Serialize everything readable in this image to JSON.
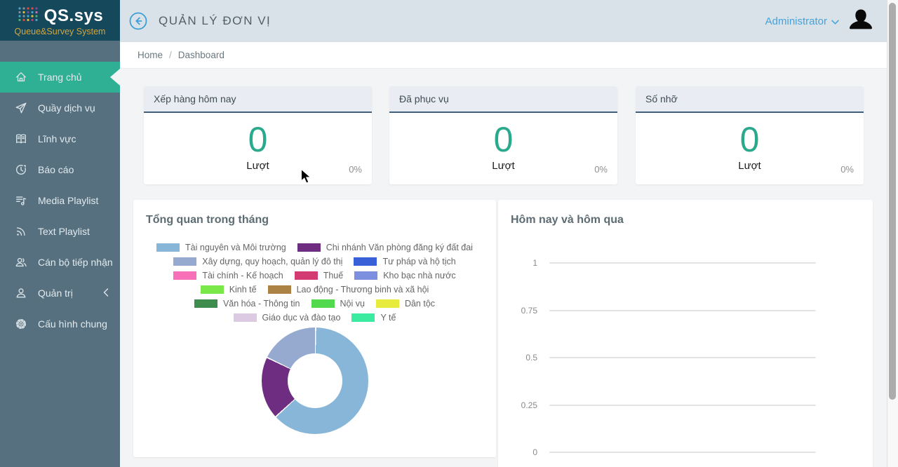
{
  "app": {
    "name": "QS.sys",
    "tagline": "Queue&Survey System"
  },
  "header": {
    "title": "QUẢN LÝ ĐƠN VỊ",
    "user": "Administrator"
  },
  "breadcrumb": {
    "home": "Home",
    "separator": "/",
    "current": "Dashboard"
  },
  "sidebar": {
    "items": [
      {
        "label": "Trang chủ",
        "icon": "home-icon",
        "active": true
      },
      {
        "label": "Quầy dịch vụ",
        "icon": "send-icon",
        "active": false
      },
      {
        "label": "Lĩnh vực",
        "icon": "book-icon",
        "active": false
      },
      {
        "label": "Báo cáo",
        "icon": "clock-icon",
        "active": false
      },
      {
        "label": "Media Playlist",
        "icon": "media-playlist-icon",
        "active": false
      },
      {
        "label": "Text Playlist",
        "icon": "rss-icon",
        "active": false
      },
      {
        "label": "Cán bộ tiếp nhận",
        "icon": "users-icon",
        "active": false
      },
      {
        "label": "Quản trị",
        "icon": "user-icon",
        "active": false,
        "has_submenu": true
      },
      {
        "label": "Cấu hình chung",
        "icon": "gear-icon",
        "active": false
      }
    ]
  },
  "stats": {
    "cards": [
      {
        "title": "Xếp hàng hôm nay",
        "value": "0",
        "unit": "Lượt",
        "percent": "0%"
      },
      {
        "title": "Đã phục vụ",
        "value": "0",
        "unit": "Lượt",
        "percent": "0%"
      },
      {
        "title": "Số nhỡ",
        "value": "0",
        "unit": "Lượt",
        "percent": "0%"
      }
    ]
  },
  "theme": {
    "sidebar_bg": "#56707F",
    "logo_bg": "#16485C",
    "active_item": "#2FAF93",
    "header_bg": "#D9E2E8",
    "accent_blue": "#45A3DB",
    "stat_teal": "#2BA98D",
    "card_header_border": "#3E5F7E",
    "tagline_gold": "#D2A63E"
  },
  "chart_data": [
    {
      "type": "doughnut",
      "title": "Tổng quan trong tháng",
      "categories": [
        "Tài nguyên và Môi trường",
        "Chi nhánh Văn phòng đăng ký đất đai",
        "Xây dựng, quy hoạch, quản lý đô thị",
        "Tư pháp và hộ tịch",
        "Tài chính - Kế hoạch",
        "Thuế",
        "Kho bạc nhà nước",
        "Kinh tế",
        "Lao động - Thương binh và xã hội",
        "Văn hóa - Thông tin",
        "Nội vụ",
        "Dân tộc",
        "Giáo dục và đào tạo",
        "Y tế"
      ],
      "colors": [
        "#87B6D9",
        "#6E2D80",
        "#96AACF",
        "#3A60D8",
        "#F770B8",
        "#D43A72",
        "#7D90E0",
        "#7BE84A",
        "#AB8144",
        "#3E8C4E",
        "#52D94E",
        "#E6EB3D",
        "#DCC9E2",
        "#3BEB9F"
      ],
      "values": [
        63,
        19,
        18,
        0,
        0,
        0,
        0,
        0,
        0,
        0,
        0,
        0,
        0,
        0
      ],
      "legend_position": "top",
      "hole_ratio": 0.51
    },
    {
      "type": "bar",
      "title": "Hôm nay và hôm qua",
      "categories": [],
      "series": [],
      "ylim": [
        0,
        1
      ],
      "yticks": [
        "1",
        "0.75",
        "0.5",
        "0.25",
        "0"
      ],
      "grid": true
    }
  ]
}
